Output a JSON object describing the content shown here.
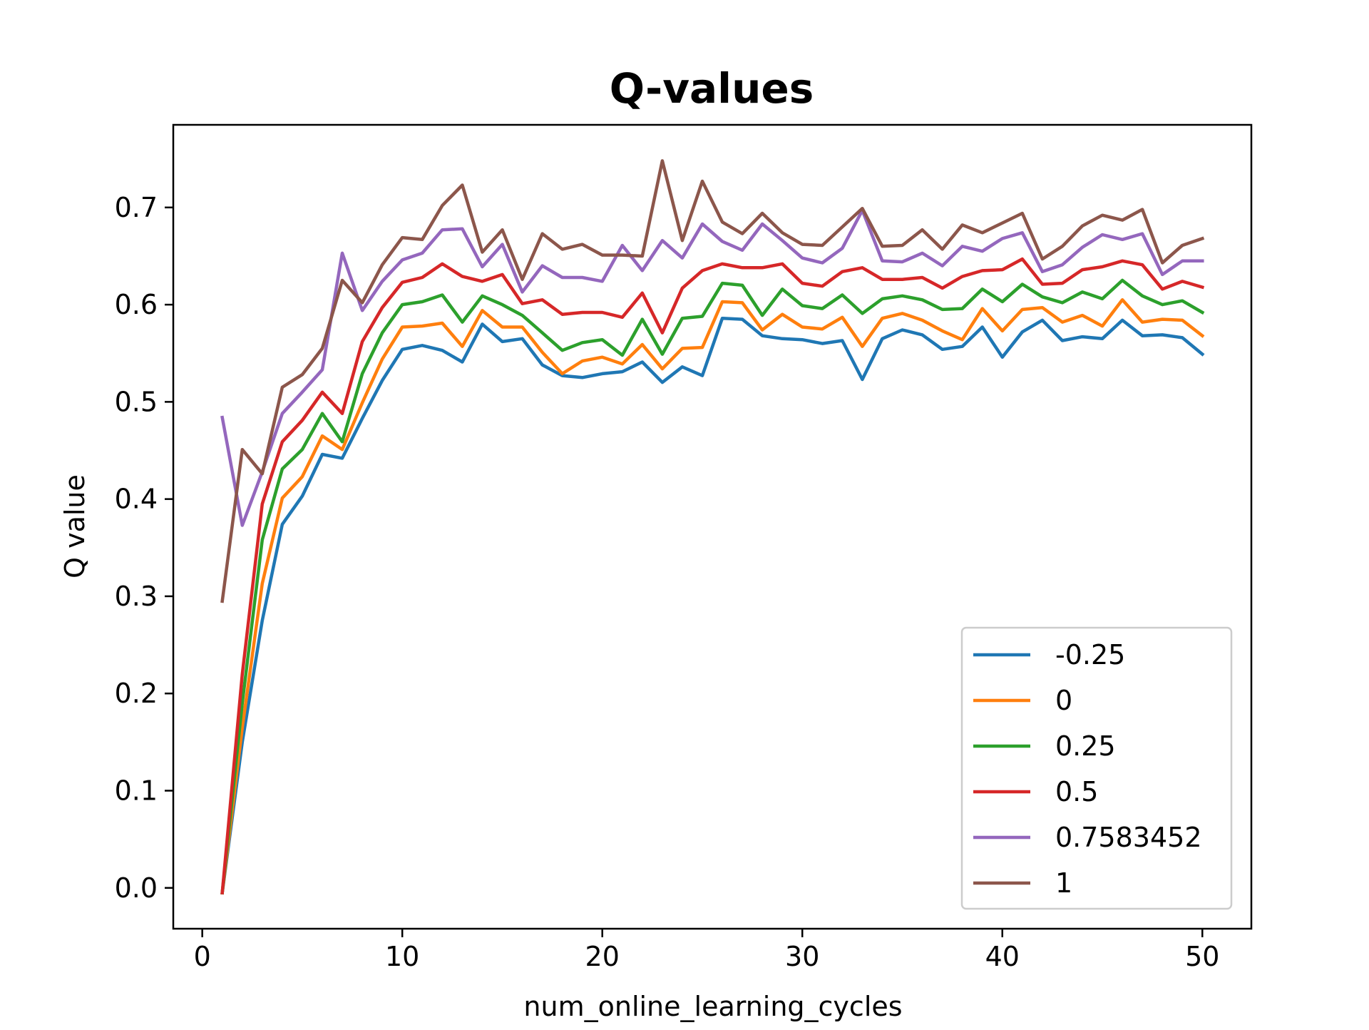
{
  "chart_data": {
    "type": "line",
    "title": "Q-values",
    "xlabel": "num_online_learning_cycles",
    "ylabel": "Q value",
    "xlim": [
      -1.45,
      52.45
    ],
    "ylim": [
      -0.042,
      0.785
    ],
    "xticks": [
      0,
      10,
      20,
      30,
      40,
      50
    ],
    "yticks": [
      0.0,
      0.1,
      0.2,
      0.3,
      0.4,
      0.5,
      0.6,
      0.7
    ],
    "xtick_labels": [
      "0",
      "10",
      "20",
      "30",
      "40",
      "50"
    ],
    "ytick_labels": [
      "0.0",
      "0.1",
      "0.2",
      "0.3",
      "0.4",
      "0.5",
      "0.6",
      "0.7"
    ],
    "grid": false,
    "legend_position": "lower-right",
    "x": [
      1,
      2,
      3,
      4,
      5,
      6,
      7,
      8,
      9,
      10,
      11,
      12,
      13,
      14,
      15,
      16,
      17,
      18,
      19,
      20,
      21,
      22,
      23,
      24,
      25,
      26,
      27,
      28,
      29,
      30,
      31,
      32,
      33,
      34,
      35,
      36,
      37,
      38,
      39,
      40,
      41,
      42,
      43,
      44,
      45,
      46,
      47,
      48,
      49,
      50
    ],
    "series": [
      {
        "name": "-0.25",
        "color": "#1f77b4",
        "values": [
          -0.005,
          0.15,
          0.275,
          0.374,
          0.403,
          0.446,
          0.442,
          0.483,
          0.522,
          0.554,
          0.558,
          0.553,
          0.541,
          0.58,
          0.562,
          0.565,
          0.538,
          0.527,
          0.525,
          0.529,
          0.531,
          0.541,
          0.52,
          0.536,
          0.527,
          0.586,
          0.585,
          0.568,
          0.565,
          0.564,
          0.56,
          0.563,
          0.523,
          0.565,
          0.574,
          0.569,
          0.554,
          0.557,
          0.577,
          0.546,
          0.572,
          0.584,
          0.563,
          0.567,
          0.565,
          0.584,
          0.568,
          0.569,
          0.566,
          0.549
        ]
      },
      {
        "name": "0",
        "color": "#ff7f0e",
        "values": [
          -0.005,
          0.165,
          0.313,
          0.401,
          0.423,
          0.465,
          0.451,
          0.499,
          0.544,
          0.577,
          0.578,
          0.581,
          0.557,
          0.594,
          0.577,
          0.577,
          0.551,
          0.529,
          0.542,
          0.546,
          0.539,
          0.559,
          0.534,
          0.555,
          0.556,
          0.603,
          0.602,
          0.574,
          0.59,
          0.577,
          0.575,
          0.587,
          0.557,
          0.586,
          0.591,
          0.584,
          0.573,
          0.564,
          0.596,
          0.573,
          0.595,
          0.597,
          0.582,
          0.589,
          0.578,
          0.605,
          0.582,
          0.585,
          0.584,
          0.568
        ]
      },
      {
        "name": "0.25",
        "color": "#2ca02c",
        "values": [
          -0.005,
          0.19,
          0.358,
          0.431,
          0.451,
          0.488,
          0.459,
          0.529,
          0.571,
          0.6,
          0.603,
          0.61,
          0.582,
          0.609,
          0.6,
          0.589,
          0.571,
          0.553,
          0.561,
          0.564,
          0.548,
          0.585,
          0.549,
          0.586,
          0.588,
          0.622,
          0.62,
          0.589,
          0.616,
          0.599,
          0.596,
          0.61,
          0.591,
          0.606,
          0.609,
          0.605,
          0.595,
          0.596,
          0.616,
          0.603,
          0.621,
          0.608,
          0.602,
          0.613,
          0.606,
          0.625,
          0.609,
          0.6,
          0.604,
          0.592
        ]
      },
      {
        "name": "0.5",
        "color": "#d62728",
        "values": [
          -0.005,
          0.22,
          0.395,
          0.459,
          0.481,
          0.51,
          0.488,
          0.562,
          0.597,
          0.623,
          0.628,
          0.642,
          0.629,
          0.624,
          0.631,
          0.601,
          0.605,
          0.59,
          0.592,
          0.592,
          0.587,
          0.612,
          0.571,
          0.617,
          0.635,
          0.642,
          0.638,
          0.638,
          0.642,
          0.622,
          0.619,
          0.634,
          0.638,
          0.626,
          0.626,
          0.628,
          0.617,
          0.629,
          0.635,
          0.636,
          0.647,
          0.621,
          0.622,
          0.636,
          0.639,
          0.645,
          0.641,
          0.616,
          0.624,
          0.618
        ]
      },
      {
        "name": "0.7583452",
        "color": "#9467bd",
        "values": [
          0.484,
          0.373,
          0.428,
          0.488,
          0.51,
          0.533,
          0.653,
          0.594,
          0.624,
          0.646,
          0.653,
          0.677,
          0.678,
          0.639,
          0.662,
          0.613,
          0.64,
          0.628,
          0.628,
          0.624,
          0.661,
          0.635,
          0.666,
          0.648,
          0.683,
          0.665,
          0.656,
          0.683,
          0.666,
          0.648,
          0.643,
          0.658,
          0.697,
          0.645,
          0.644,
          0.653,
          0.64,
          0.66,
          0.655,
          0.668,
          0.674,
          0.634,
          0.641,
          0.659,
          0.672,
          0.667,
          0.673,
          0.631,
          0.645,
          0.645
        ]
      },
      {
        "name": "1",
        "color": "#8c564b",
        "values": [
          0.295,
          0.451,
          0.426,
          0.515,
          0.528,
          0.555,
          0.625,
          0.602,
          0.641,
          0.669,
          0.667,
          0.702,
          0.723,
          0.654,
          0.677,
          0.626,
          0.673,
          0.657,
          0.662,
          0.651,
          0.651,
          0.65,
          0.748,
          0.666,
          0.727,
          0.685,
          0.673,
          0.694,
          0.674,
          0.662,
          0.661,
          0.68,
          0.699,
          0.66,
          0.661,
          0.677,
          0.657,
          0.682,
          0.674,
          0.684,
          0.694,
          0.647,
          0.66,
          0.681,
          0.692,
          0.687,
          0.698,
          0.643,
          0.661,
          0.668
        ]
      }
    ]
  }
}
